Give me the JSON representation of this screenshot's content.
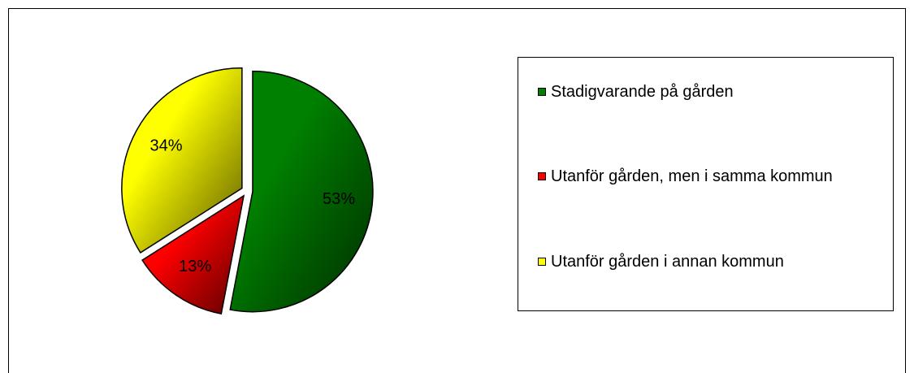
{
  "chart_data": {
    "type": "pie",
    "categories": [
      "Stadigvarande på gården",
      "Utanför gården, men i samma kommun",
      "Utanför gården i annan kommun"
    ],
    "values": [
      53,
      13,
      34
    ],
    "value_labels": [
      "53%",
      "13%",
      "34%"
    ],
    "colors": [
      "#008000",
      "#ff0000",
      "#ffff00"
    ],
    "legend": "right"
  }
}
